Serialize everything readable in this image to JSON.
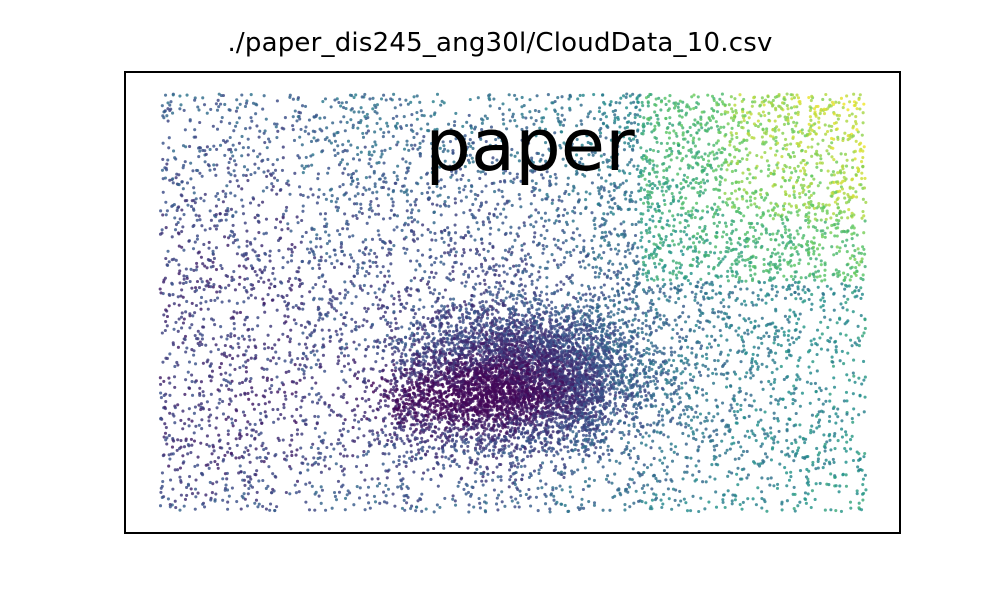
{
  "chart_data": {
    "type": "scatter",
    "title": "./paper_dis245_ang30l/CloudData_10.csv",
    "annotation": "paper",
    "xlabel": "",
    "ylabel": "",
    "grid": false,
    "legend": false,
    "colormap": "viridis",
    "colorscale_colors": [
      "#440154",
      "#3b528b",
      "#21918c",
      "#5ec962",
      "#fde725"
    ],
    "xlim": [
      0,
      1
    ],
    "ylim": [
      0,
      1
    ],
    "point_count_estimate": 12000,
    "point_distribution": {
      "background_fill": "sparse uniform cloud across full plot",
      "dense_cluster_center": [
        0.52,
        0.34
      ],
      "dense_cluster_spread": [
        0.09,
        0.08
      ],
      "dark_purple_band_center": [
        0.42,
        0.27
      ],
      "yellow_green_region": "upper-right and right side"
    }
  }
}
